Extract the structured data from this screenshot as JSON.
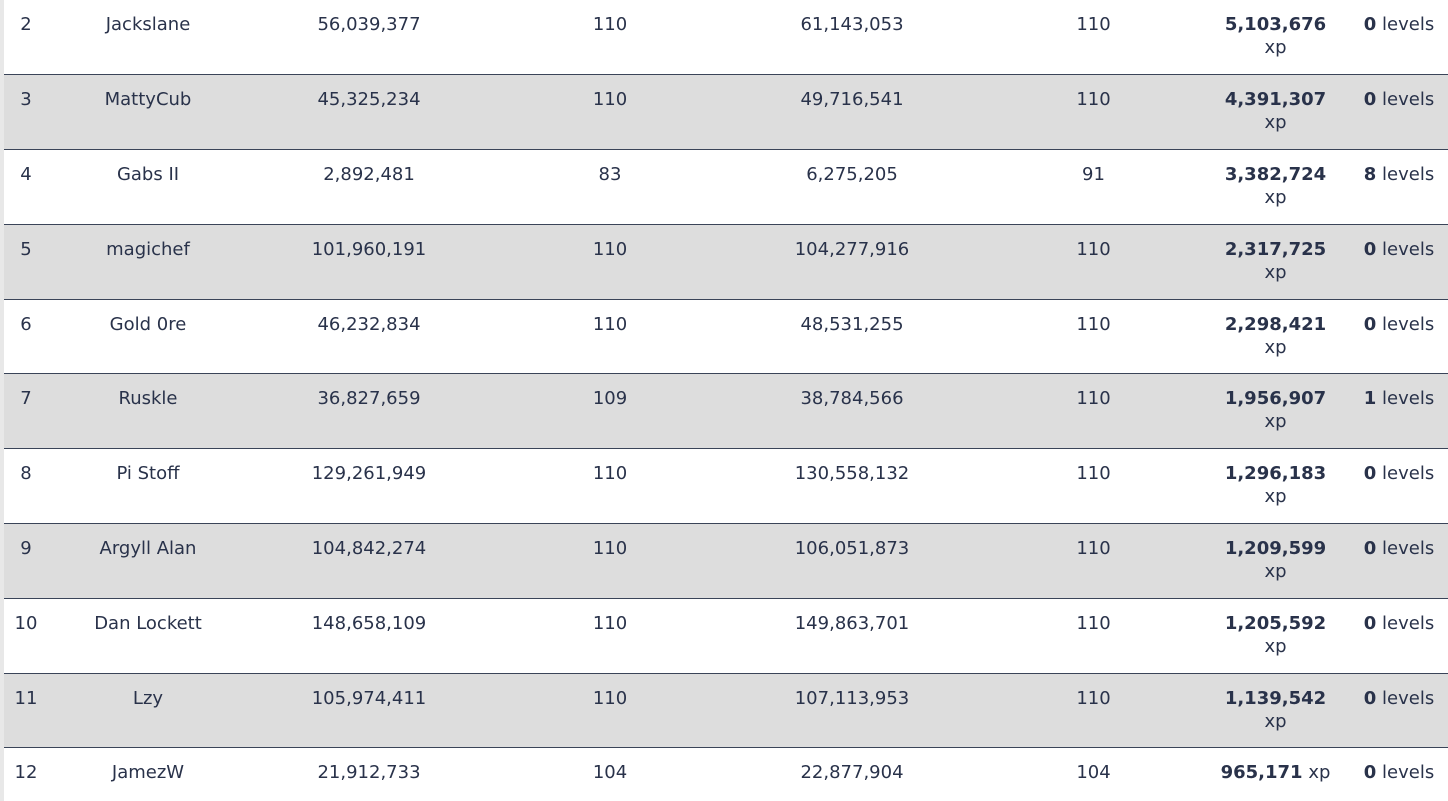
{
  "rows": [
    {
      "rank": "2",
      "name": "Jackslane",
      "xp_a": "56,039,377",
      "level_a": "110",
      "xp_b": "61,143,053",
      "level_b": "110",
      "gain": "5,103,676",
      "gain_unit": "xp",
      "level_diff": "0",
      "level_unit": "levels"
    },
    {
      "rank": "3",
      "name": "MattyCub",
      "xp_a": "45,325,234",
      "level_a": "110",
      "xp_b": "49,716,541",
      "level_b": "110",
      "gain": "4,391,307",
      "gain_unit": "xp",
      "level_diff": "0",
      "level_unit": "levels"
    },
    {
      "rank": "4",
      "name": "Gabs II",
      "xp_a": "2,892,481",
      "level_a": "83",
      "xp_b": "6,275,205",
      "level_b": "91",
      "gain": "3,382,724",
      "gain_unit": "xp",
      "level_diff": "8",
      "level_unit": "levels"
    },
    {
      "rank": "5",
      "name": "magichef",
      "xp_a": "101,960,191",
      "level_a": "110",
      "xp_b": "104,277,916",
      "level_b": "110",
      "gain": "2,317,725",
      "gain_unit": "xp",
      "level_diff": "0",
      "level_unit": "levels"
    },
    {
      "rank": "6",
      "name": "Gold 0re",
      "xp_a": "46,232,834",
      "level_a": "110",
      "xp_b": "48,531,255",
      "level_b": "110",
      "gain": "2,298,421",
      "gain_unit": "xp",
      "level_diff": "0",
      "level_unit": "levels"
    },
    {
      "rank": "7",
      "name": "Ruskle",
      "xp_a": "36,827,659",
      "level_a": "109",
      "xp_b": "38,784,566",
      "level_b": "110",
      "gain": "1,956,907",
      "gain_unit": "xp",
      "level_diff": "1",
      "level_unit": "levels"
    },
    {
      "rank": "8",
      "name": "Pi Stoff",
      "xp_a": "129,261,949",
      "level_a": "110",
      "xp_b": "130,558,132",
      "level_b": "110",
      "gain": "1,296,183",
      "gain_unit": "xp",
      "level_diff": "0",
      "level_unit": "levels"
    },
    {
      "rank": "9",
      "name": "Argyll Alan",
      "xp_a": "104,842,274",
      "level_a": "110",
      "xp_b": "106,051,873",
      "level_b": "110",
      "gain": "1,209,599",
      "gain_unit": "xp",
      "level_diff": "0",
      "level_unit": "levels"
    },
    {
      "rank": "10",
      "name": "Dan Lockett",
      "xp_a": "148,658,109",
      "level_a": "110",
      "xp_b": "149,863,701",
      "level_b": "110",
      "gain": "1,205,592",
      "gain_unit": "xp",
      "level_diff": "0",
      "level_unit": "levels"
    },
    {
      "rank": "11",
      "name": "Lzy",
      "xp_a": "105,974,411",
      "level_a": "110",
      "xp_b": "107,113,953",
      "level_b": "110",
      "gain": "1,139,542",
      "gain_unit": "xp",
      "level_diff": "0",
      "level_unit": "levels"
    },
    {
      "rank": "12",
      "name": "JamezW",
      "xp_a": "21,912,733",
      "level_a": "104",
      "xp_b": "22,877,904",
      "level_b": "104",
      "gain": "965,171",
      "gain_unit": "xp",
      "level_diff": "0",
      "level_unit": "levels",
      "gain_inline": true
    }
  ]
}
